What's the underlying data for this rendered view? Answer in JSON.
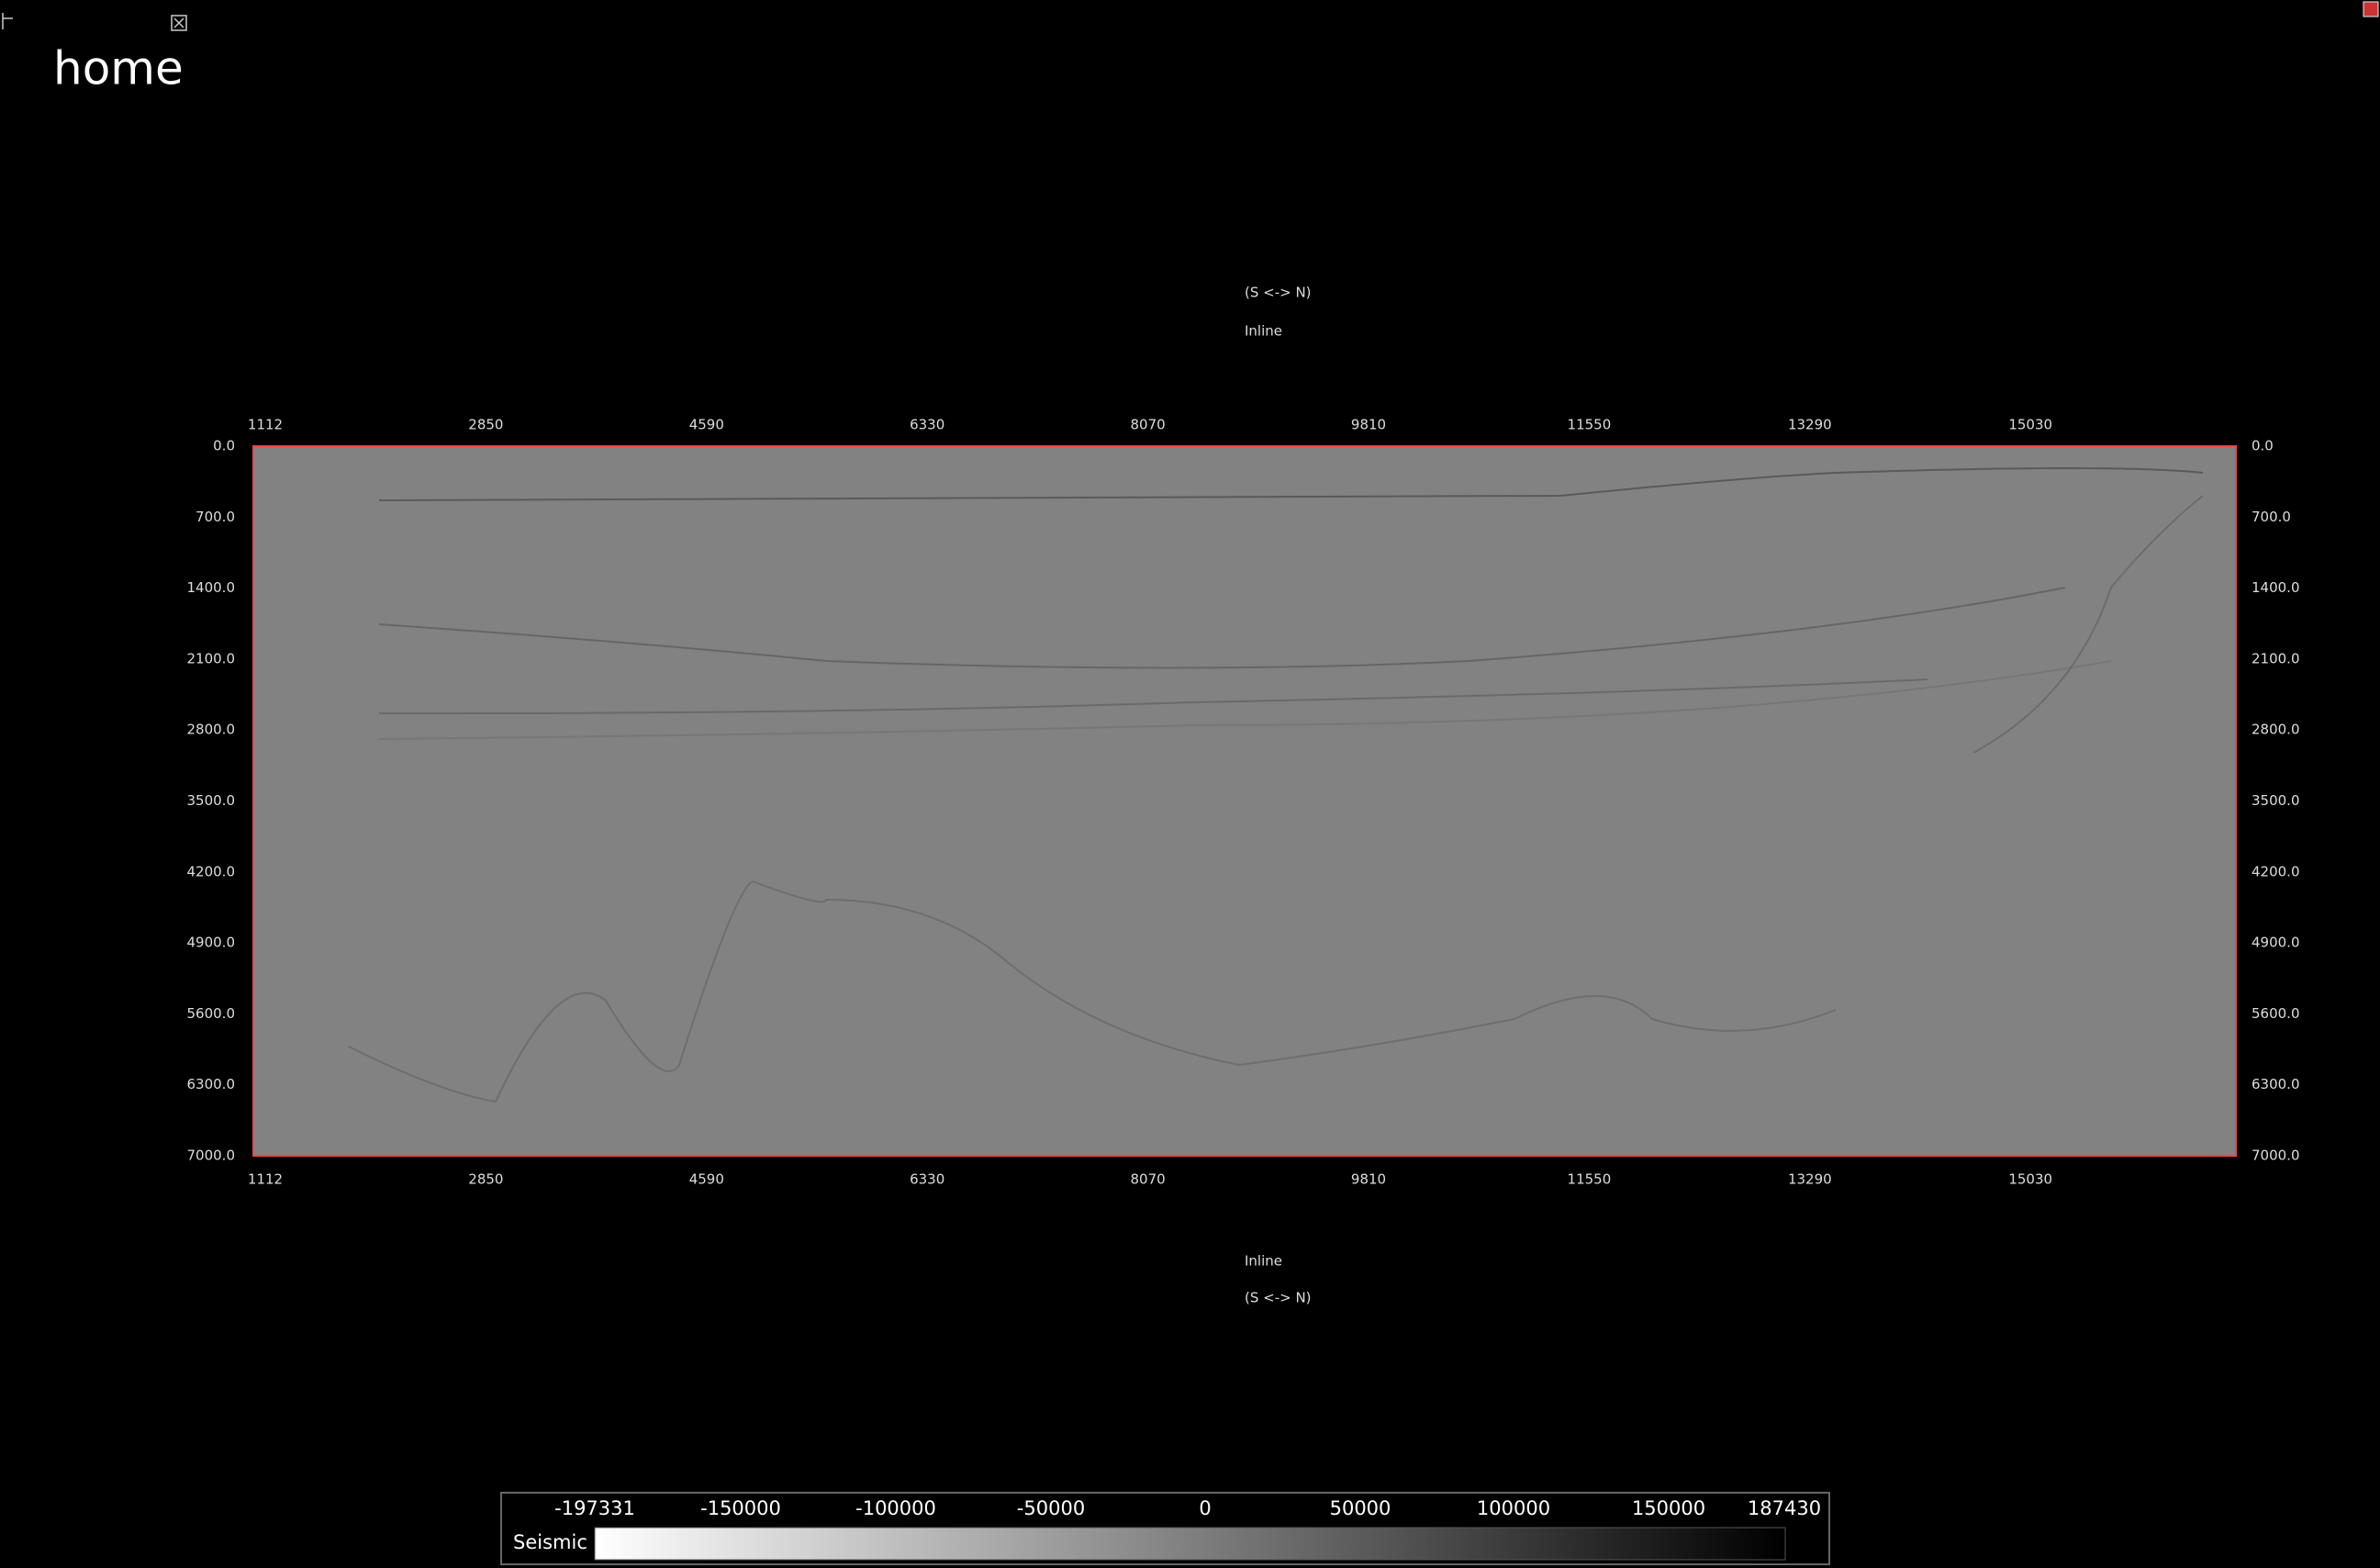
{
  "window": {
    "title": "home"
  },
  "section": {
    "top_axis": {
      "direction": "(S <-> N)",
      "label": "Inline"
    },
    "bottom_axis": {
      "label": "Inline",
      "direction": "(S <-> N)"
    },
    "x_ticks": [
      "1112",
      "2850",
      "4590",
      "6330",
      "8070",
      "9810",
      "11550",
      "13290",
      "15030"
    ],
    "y_ticks": [
      "0.0",
      "700.0",
      "1400.0",
      "2100.0",
      "2800.0",
      "3500.0",
      "4200.0",
      "4900.0",
      "5600.0",
      "6300.0",
      "7000.0"
    ]
  },
  "colorbar": {
    "label": "Seismic",
    "ticks": [
      "-197331",
      "-150000",
      "-100000",
      "-50000",
      "0",
      "50000",
      "100000",
      "150000",
      "187430"
    ]
  }
}
